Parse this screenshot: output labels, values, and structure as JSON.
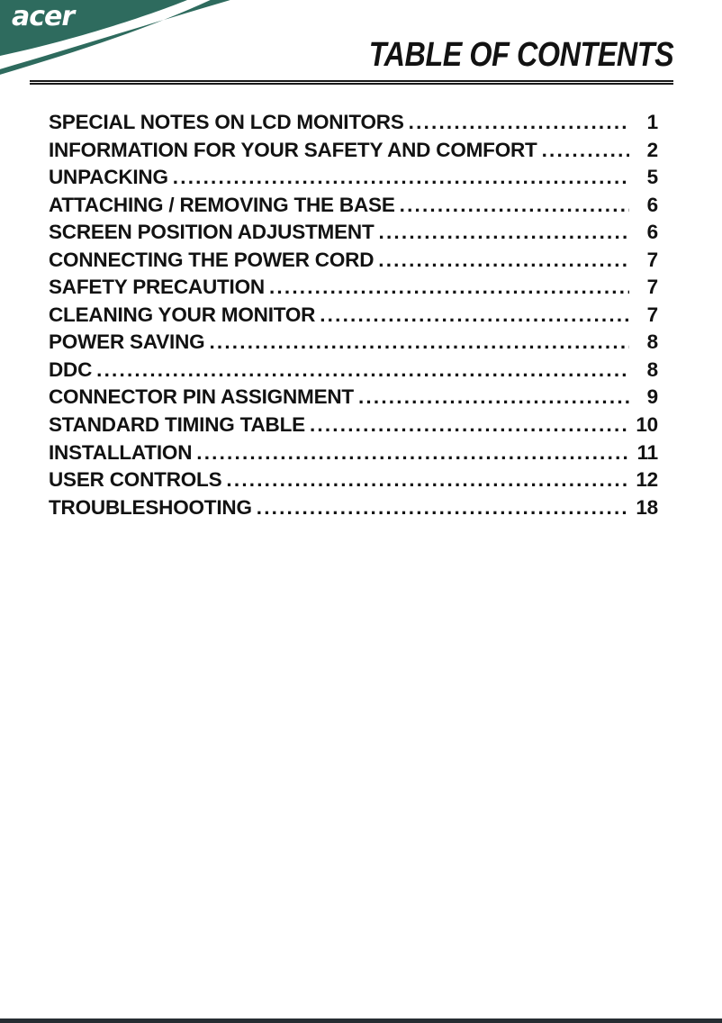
{
  "colors": {
    "brand_green": "#2e6b5e",
    "footer_bar": "#262d32",
    "text": "#121212",
    "rule": "#1a1a1a"
  },
  "header": {
    "logo_text": "acer",
    "title": "TABLE OF CONTENTS"
  },
  "toc": {
    "entries": [
      {
        "label": "SPECIAL NOTES ON LCD MONITORS",
        "page": "1"
      },
      {
        "label": "INFORMATION FOR YOUR SAFETY AND COMFORT",
        "page": "2"
      },
      {
        "label": "UNPACKING",
        "page": "5"
      },
      {
        "label": "ATTACHING / REMOVING THE BASE",
        "page": "6"
      },
      {
        "label": "SCREEN POSITION ADJUSTMENT",
        "page": "6"
      },
      {
        "label": "CONNECTING THE POWER CORD",
        "page": "7"
      },
      {
        "label": "SAFETY PRECAUTION",
        "page": "7"
      },
      {
        "label": "CLEANING YOUR MONITOR",
        "page": "7"
      },
      {
        "label": "POWER SAVING",
        "page": "8"
      },
      {
        "label": "DDC",
        "page": "8"
      },
      {
        "label": "CONNECTOR PIN ASSIGNMENT",
        "page": "9"
      },
      {
        "label": "STANDARD TIMING TABLE",
        "page": "10"
      },
      {
        "label": "INSTALLATION",
        "page": "11"
      },
      {
        "label": "USER CONTROLS",
        "page": "12"
      },
      {
        "label": "TROUBLESHOOTING",
        "page": "18"
      }
    ]
  }
}
